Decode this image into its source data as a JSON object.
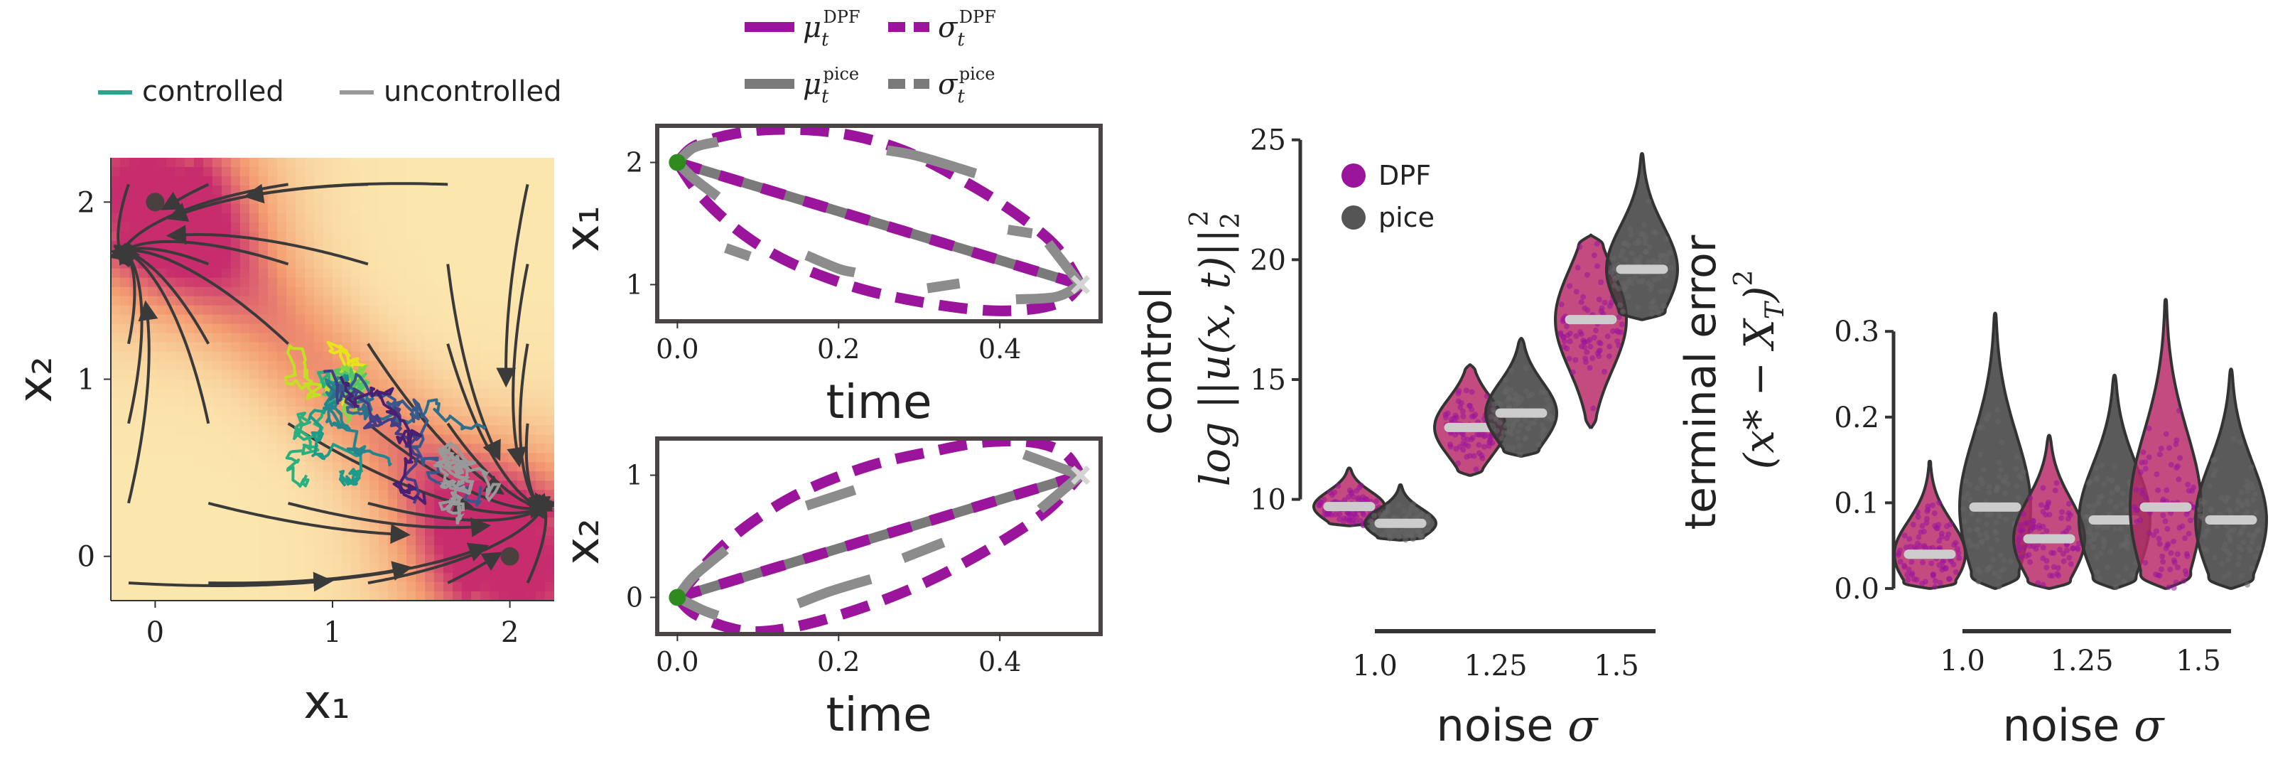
{
  "colors": {
    "dpf": "#9b149c",
    "pice": "#7a7a7a",
    "pice_light": "#8c8c8c",
    "frame": "#4b4444",
    "start_point": "#2e8b1e",
    "end_marker": "#d4d4d4",
    "median_bar": "#cccccc",
    "violin_dpf_fill": "#b92b6a",
    "violin_pice_fill": "#3d3d3d",
    "controlled_line": "#2ba58b",
    "uncontrolled_line": "#999999",
    "stream_arrow": "#3a3a3a",
    "field_low": "#fbe6ad",
    "field_mid": "#f39c70",
    "field_high": "#c72c6d"
  },
  "panel_a": {
    "legend": {
      "controlled": "controlled",
      "uncontrolled": "uncontrolled"
    },
    "xlabel": "x₁",
    "ylabel": "x₂",
    "xticks": [
      "0",
      "1",
      "2"
    ],
    "yticks": [
      "0",
      "1",
      "2"
    ],
    "xlim": [
      -0.25,
      2.25
    ],
    "ylim": [
      -0.25,
      2.25
    ],
    "attractors": [
      [
        0,
        2
      ],
      [
        2,
        0
      ]
    ],
    "colormap": "magma-light"
  },
  "panel_b": {
    "legend": {
      "mu_dpf": "μ",
      "mu_dpf_sub": "t",
      "mu_dpf_sup": "DPF",
      "sigma_dpf": "σ",
      "sigma_dpf_sub": "t",
      "sigma_dpf_sup": "DPF",
      "mu_pice": "μ",
      "mu_pice_sub": "t",
      "mu_pice_sup": "pice",
      "sigma_pice": "σ",
      "sigma_pice_sub": "t",
      "sigma_pice_sup": "pice"
    },
    "top": {
      "ylabel": "x₁",
      "xlabel": "time",
      "xticks": [
        "0.0",
        "0.2",
        "0.4"
      ],
      "yticks": [
        "1",
        "2"
      ],
      "xlim": [
        -0.025,
        0.525
      ],
      "ylim": [
        0.7,
        2.3
      ],
      "mean": {
        "start": 2.0,
        "end": 1.0
      },
      "upper": [
        [
          0.0,
          2.0
        ],
        [
          0.02,
          2.13
        ],
        [
          0.06,
          2.22
        ],
        [
          0.12,
          2.27
        ],
        [
          0.2,
          2.24
        ],
        [
          0.28,
          2.1
        ],
        [
          0.36,
          1.83
        ],
        [
          0.42,
          1.58
        ],
        [
          0.47,
          1.31
        ],
        [
          0.5,
          1.0
        ]
      ],
      "lower": [
        [
          0.0,
          2.0
        ],
        [
          0.03,
          1.72
        ],
        [
          0.08,
          1.42
        ],
        [
          0.14,
          1.18
        ],
        [
          0.22,
          0.98
        ],
        [
          0.3,
          0.86
        ],
        [
          0.38,
          0.79
        ],
        [
          0.44,
          0.8
        ],
        [
          0.48,
          0.87
        ],
        [
          0.5,
          1.0
        ]
      ],
      "pice_sigma_segments": [
        [
          [
            0.0,
            2.0
          ],
          [
            0.02,
            2.12
          ],
          [
            0.05,
            2.17
          ]
        ],
        [
          [
            0.26,
            2.1
          ],
          [
            0.3,
            2.05
          ],
          [
            0.37,
            1.91
          ]
        ],
        [
          [
            0.41,
            1.45
          ],
          [
            0.44,
            1.42
          ]
        ],
        [
          [
            0.46,
            1.34
          ],
          [
            0.5,
            1.0
          ]
        ],
        [
          [
            0.0,
            2.0
          ],
          [
            0.02,
            1.87
          ],
          [
            0.05,
            1.72
          ]
        ],
        [
          [
            0.06,
            1.3
          ],
          [
            0.09,
            1.23
          ]
        ],
        [
          [
            0.16,
            1.24
          ],
          [
            0.2,
            1.13
          ],
          [
            0.22,
            1.1
          ]
        ],
        [
          [
            0.31,
            0.97
          ],
          [
            0.35,
            1.01
          ]
        ],
        [
          [
            0.42,
            0.88
          ],
          [
            0.47,
            0.9
          ],
          [
            0.5,
            1.0
          ]
        ]
      ]
    },
    "bottom": {
      "ylabel": "x₂",
      "xlabel": "time",
      "xticks": [
        "0.0",
        "0.2",
        "0.4"
      ],
      "yticks": [
        "0",
        "1"
      ],
      "xlim": [
        -0.025,
        0.525
      ],
      "ylim": [
        -0.3,
        1.3
      ],
      "mean": {
        "start": 0.0,
        "end": 1.0
      },
      "upper": [
        [
          0.0,
          0.0
        ],
        [
          0.05,
          0.38
        ],
        [
          0.1,
          0.65
        ],
        [
          0.16,
          0.88
        ],
        [
          0.24,
          1.08
        ],
        [
          0.32,
          1.2
        ],
        [
          0.38,
          1.27
        ],
        [
          0.44,
          1.27
        ],
        [
          0.48,
          1.18
        ],
        [
          0.5,
          1.0
        ]
      ],
      "lower": [
        [
          0.0,
          0.0
        ],
        [
          0.02,
          -0.13
        ],
        [
          0.06,
          -0.24
        ],
        [
          0.1,
          -0.28
        ],
        [
          0.16,
          -0.22
        ],
        [
          0.24,
          -0.06
        ],
        [
          0.32,
          0.16
        ],
        [
          0.4,
          0.45
        ],
        [
          0.46,
          0.72
        ],
        [
          0.5,
          1.0
        ]
      ],
      "pice_sigma_segments": [
        [
          [
            0.0,
            0.0
          ],
          [
            0.02,
            0.17
          ],
          [
            0.06,
            0.39
          ]
        ],
        [
          [
            0.16,
            0.75
          ],
          [
            0.22,
            0.88
          ]
        ],
        [
          [
            0.43,
            1.17
          ],
          [
            0.5,
            1.0
          ]
        ],
        [
          [
            0.0,
            0.0
          ],
          [
            0.03,
            -0.1
          ],
          [
            0.05,
            -0.15
          ]
        ],
        [
          [
            0.15,
            -0.05
          ],
          [
            0.19,
            0.05
          ],
          [
            0.24,
            0.15
          ]
        ],
        [
          [
            0.28,
            0.32
          ],
          [
            0.33,
            0.45
          ]
        ],
        [
          [
            0.45,
            0.72
          ],
          [
            0.5,
            1.0
          ]
        ]
      ]
    }
  },
  "chart_data": [
    {
      "type": "violin",
      "ylabel_main": "log ||u(x, t)||",
      "ylabel_sub": "2",
      "ylabel_sup": "2",
      "ylabel_extra": "control",
      "xlabel_text": "noise ",
      "xlabel_symbol": "σ",
      "categories": [
        "1.0",
        "1.25",
        "1.5"
      ],
      "yticks": [
        "10",
        "15",
        "20",
        "25"
      ],
      "ylim": [
        8.0,
        25.2
      ],
      "legend": [
        "DPF",
        "pice"
      ],
      "series": [
        {
          "name": "DPF",
          "median": [
            9.7,
            13.0,
            17.5
          ],
          "min": [
            8.9,
            11.0,
            13.0
          ],
          "max": [
            11.3,
            15.6,
            21.0
          ]
        },
        {
          "name": "pice",
          "median": [
            9.0,
            13.6,
            19.6
          ],
          "min": [
            8.3,
            11.8,
            17.5
          ],
          "max": [
            10.6,
            16.7,
            24.4
          ]
        }
      ]
    },
    {
      "type": "violin",
      "ylabel_main": "(x* − X",
      "ylabel_sub": "T",
      "ylabel_end": ")",
      "ylabel_sup": "2",
      "ylabel_extra": "terminal error",
      "xlabel_text": "noise ",
      "xlabel_symbol": "σ",
      "categories": [
        "1.0",
        "1.25",
        "1.5"
      ],
      "yticks": [
        "0.0",
        "0.1",
        "0.2",
        "0.3"
      ],
      "ylim": [
        -0.01,
        0.34
      ],
      "series": [
        {
          "name": "DPF",
          "median": [
            0.04,
            0.058,
            0.095
          ],
          "min": [
            0.0,
            0.0,
            0.0
          ],
          "max": [
            0.148,
            0.178,
            0.336
          ]
        },
        {
          "name": "pice",
          "median": [
            0.095,
            0.08,
            0.08
          ],
          "min": [
            0.0,
            0.0,
            0.0
          ],
          "max": [
            0.32,
            0.248,
            0.255
          ]
        }
      ]
    }
  ]
}
